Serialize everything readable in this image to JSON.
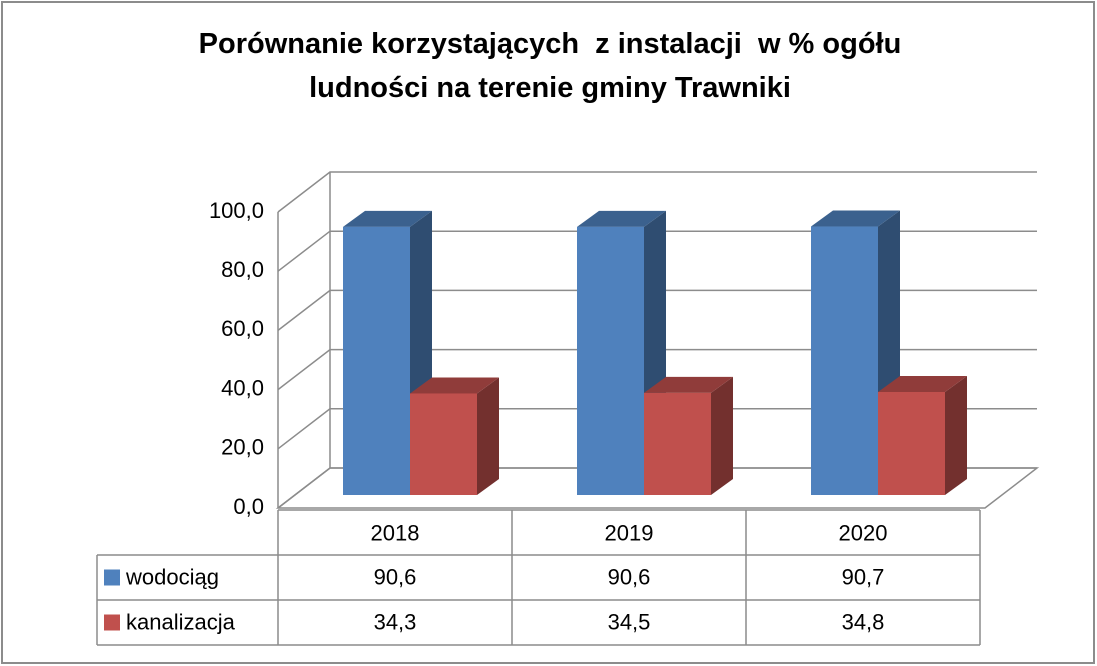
{
  "chart_data": {
    "type": "bar3d",
    "title": "Porównanie korzystających  z instalacji  w % ogółu ludności na terenie gminy Trawniki",
    "categories": [
      "2018",
      "2019",
      "2020"
    ],
    "series": [
      {
        "name": "wodociąg",
        "color": "#4f81bd",
        "values": [
          90.6,
          90.6,
          90.7
        ],
        "value_labels": [
          "90,6",
          "90,6",
          "90,7"
        ]
      },
      {
        "name": "kanalizacja",
        "color": "#c0504d",
        "values": [
          34.3,
          34.5,
          34.8
        ],
        "value_labels": [
          "34,3",
          "34,5",
          "34,8"
        ]
      }
    ],
    "ylim": [
      0,
      100
    ],
    "yticks": [
      {
        "value": 0,
        "label": "0,0"
      },
      {
        "value": 20,
        "label": "20,0"
      },
      {
        "value": 40,
        "label": "40,0"
      },
      {
        "value": 60,
        "label": "60,0"
      },
      {
        "value": 80,
        "label": "80,0"
      },
      {
        "value": 100,
        "label": "100,0"
      }
    ],
    "grid": true,
    "data_table": true
  }
}
